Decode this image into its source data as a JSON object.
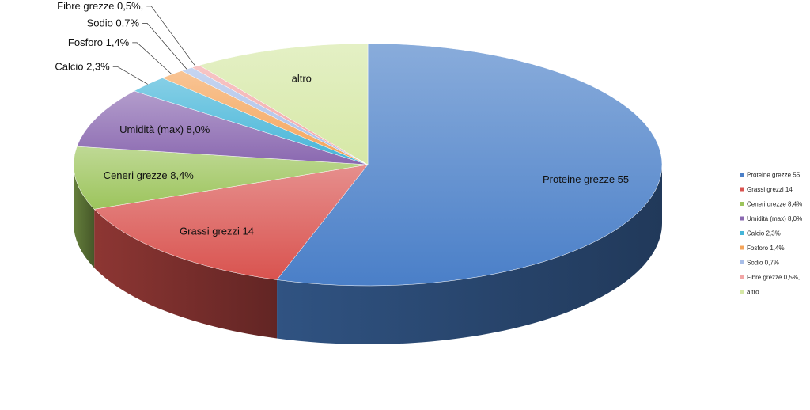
{
  "chart_data": {
    "type": "pie",
    "title": "",
    "legend_position": "right",
    "slices": [
      {
        "label": "Proteine grezze 55",
        "value": 55,
        "color": "#4A7FC8"
      },
      {
        "label": "Grassi grezzi 14",
        "value": 14,
        "color": "#D9534F"
      },
      {
        "label": "Ceneri grezze 8,4%",
        "value": 8.4,
        "color": "#9CC45C"
      },
      {
        "label": "Umidità (max) 8,0%",
        "value": 8.0,
        "color": "#8A68B0"
      },
      {
        "label": "Calcio 2,3%",
        "value": 2.3,
        "color": "#45B5D8"
      },
      {
        "label": "Fosforo 1,4%",
        "value": 1.4,
        "color": "#F4A45A"
      },
      {
        "label": "Sodio 0,7%",
        "value": 0.7,
        "color": "#A8BEE8"
      },
      {
        "label": "Fibre grezze 0,5%,",
        "value": 0.5,
        "color": "#F2A6A6"
      },
      {
        "label": "altro",
        "value": 9.7,
        "color": "#D6E8A6"
      }
    ]
  }
}
